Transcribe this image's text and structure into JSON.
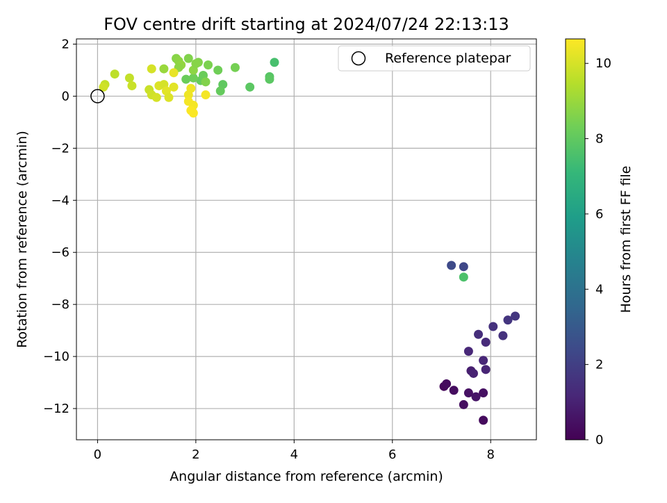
{
  "chart_data": {
    "type": "scatter",
    "title": "FOV centre drift starting at 2024/07/24 22:13:13",
    "xlabel": "Angular distance from reference (arcmin)",
    "ylabel": "Rotation from reference (arcmin)",
    "xlim": [
      -0.43,
      8.93
    ],
    "ylim": [
      -13.2,
      2.2
    ],
    "xticks": [
      0,
      2,
      4,
      6,
      8
    ],
    "yticks": [
      2,
      0,
      -2,
      -4,
      -6,
      -8,
      -10,
      -12
    ],
    "grid": true,
    "legend": {
      "position": "top-right",
      "label": "Reference platepar"
    },
    "reference_point": {
      "x": 0,
      "y": 0
    },
    "colorbar": {
      "label": "Hours from first FF file",
      "range": [
        0,
        10.65
      ],
      "ticks": [
        0,
        2,
        4,
        6,
        8,
        10
      ],
      "colormap": [
        "#440154",
        "#482878",
        "#3e4989",
        "#31688e",
        "#26828e",
        "#1f9e89",
        "#35b779",
        "#6ece58",
        "#b5de2b",
        "#fde725"
      ]
    },
    "points": [
      {
        "x": 7.05,
        "y": -11.15,
        "c": 0.2
      },
      {
        "x": 7.1,
        "y": -11.05,
        "c": 0.3
      },
      {
        "x": 7.25,
        "y": -11.3,
        "c": 0.35
      },
      {
        "x": 7.45,
        "y": -11.85,
        "c": 0.4
      },
      {
        "x": 7.55,
        "y": -11.4,
        "c": 0.5
      },
      {
        "x": 7.7,
        "y": -11.55,
        "c": 0.6
      },
      {
        "x": 7.85,
        "y": -11.4,
        "c": 0.45
      },
      {
        "x": 7.85,
        "y": -12.45,
        "c": 0.3
      },
      {
        "x": 7.6,
        "y": -10.55,
        "c": 0.9
      },
      {
        "x": 7.65,
        "y": -10.65,
        "c": 1.0
      },
      {
        "x": 7.9,
        "y": -10.5,
        "c": 1.1
      },
      {
        "x": 7.85,
        "y": -10.15,
        "c": 1.15
      },
      {
        "x": 7.55,
        "y": -9.8,
        "c": 1.2
      },
      {
        "x": 7.9,
        "y": -9.45,
        "c": 1.3
      },
      {
        "x": 7.75,
        "y": -9.15,
        "c": 1.4
      },
      {
        "x": 8.05,
        "y": -8.85,
        "c": 1.5
      },
      {
        "x": 8.25,
        "y": -9.2,
        "c": 1.55
      },
      {
        "x": 8.35,
        "y": -8.6,
        "c": 1.65
      },
      {
        "x": 8.5,
        "y": -8.45,
        "c": 1.7
      },
      {
        "x": 7.2,
        "y": -6.5,
        "c": 2.4
      },
      {
        "x": 7.45,
        "y": -6.55,
        "c": 2.3
      },
      {
        "x": 7.45,
        "y": -6.95,
        "c": 7.6
      },
      {
        "x": 3.6,
        "y": 1.3,
        "c": 7.5
      },
      {
        "x": 3.5,
        "y": 0.75,
        "c": 7.8
      },
      {
        "x": 3.5,
        "y": 0.65,
        "c": 7.9
      },
      {
        "x": 3.1,
        "y": 0.35,
        "c": 7.9
      },
      {
        "x": 2.55,
        "y": 0.45,
        "c": 8.0
      },
      {
        "x": 2.5,
        "y": 0.2,
        "c": 8.1
      },
      {
        "x": 2.45,
        "y": 1.0,
        "c": 8.3
      },
      {
        "x": 2.8,
        "y": 1.1,
        "c": 8.4
      },
      {
        "x": 2.25,
        "y": 1.2,
        "c": 8.5
      },
      {
        "x": 2.05,
        "y": 1.3,
        "c": 8.6
      },
      {
        "x": 2.1,
        "y": 0.6,
        "c": 8.1
      },
      {
        "x": 2.15,
        "y": 0.8,
        "c": 8.2
      },
      {
        "x": 1.95,
        "y": 0.7,
        "c": 8.3
      },
      {
        "x": 1.8,
        "y": 0.65,
        "c": 8.2
      },
      {
        "x": 1.85,
        "y": 1.45,
        "c": 8.6
      },
      {
        "x": 1.6,
        "y": 1.45,
        "c": 8.7
      },
      {
        "x": 1.65,
        "y": 1.35,
        "c": 8.8
      },
      {
        "x": 1.7,
        "y": 1.2,
        "c": 8.9
      },
      {
        "x": 1.65,
        "y": 1.1,
        "c": 8.8
      },
      {
        "x": 1.95,
        "y": 1.0,
        "c": 8.8
      },
      {
        "x": 2.0,
        "y": 1.25,
        "c": 8.7
      },
      {
        "x": 2.2,
        "y": 0.55,
        "c": 8.6
      },
      {
        "x": 1.35,
        "y": 1.05,
        "c": 9.0
      },
      {
        "x": 1.1,
        "y": 1.05,
        "c": 10.0
      },
      {
        "x": 0.35,
        "y": 0.85,
        "c": 9.6
      },
      {
        "x": 0.65,
        "y": 0.7,
        "c": 9.7
      },
      {
        "x": 0.7,
        "y": 0.4,
        "c": 9.8
      },
      {
        "x": 0.15,
        "y": 0.45,
        "c": 9.7
      },
      {
        "x": 0.12,
        "y": 0.35,
        "c": 9.9
      },
      {
        "x": 1.05,
        "y": 0.25,
        "c": 9.8
      },
      {
        "x": 1.1,
        "y": 0.05,
        "c": 9.9
      },
      {
        "x": 1.2,
        "y": -0.05,
        "c": 10.0
      },
      {
        "x": 1.25,
        "y": 0.4,
        "c": 10.1
      },
      {
        "x": 1.35,
        "y": 0.45,
        "c": 10.0
      },
      {
        "x": 1.4,
        "y": 0.2,
        "c": 10.2
      },
      {
        "x": 1.45,
        "y": -0.05,
        "c": 10.1
      },
      {
        "x": 1.55,
        "y": 0.35,
        "c": 10.2
      },
      {
        "x": 1.55,
        "y": 0.9,
        "c": 10.3
      },
      {
        "x": 1.85,
        "y": 0.05,
        "c": 10.4
      },
      {
        "x": 1.85,
        "y": -0.2,
        "c": 10.5
      },
      {
        "x": 1.95,
        "y": -0.35,
        "c": 10.5
      },
      {
        "x": 1.9,
        "y": -0.55,
        "c": 10.6
      },
      {
        "x": 1.95,
        "y": -0.65,
        "c": 10.6
      },
      {
        "x": 2.2,
        "y": 0.05,
        "c": 10.5
      },
      {
        "x": 1.9,
        "y": 0.3,
        "c": 10.4
      }
    ]
  }
}
